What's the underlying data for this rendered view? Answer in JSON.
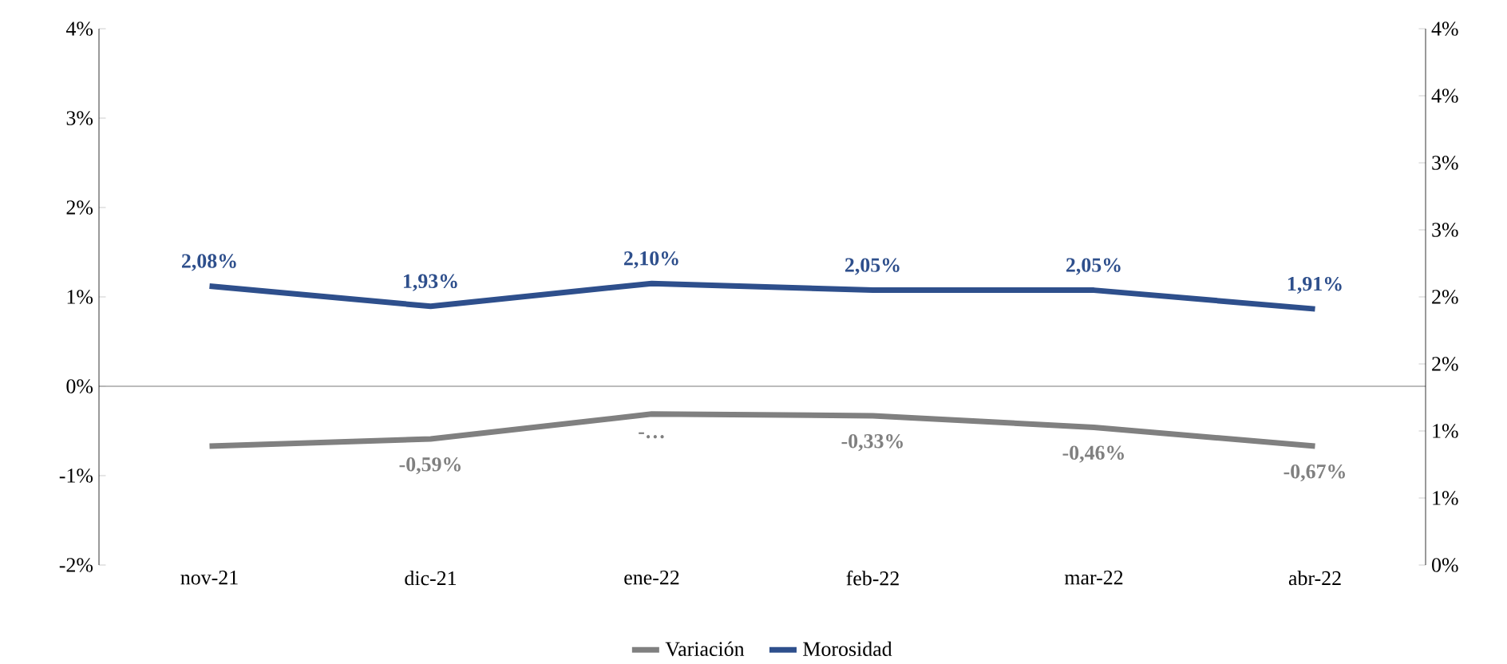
{
  "chart_data": {
    "type": "line",
    "categories": [
      "nov-21",
      "dic-21",
      "ene-22",
      "feb-22",
      "mar-22",
      "abr-22"
    ],
    "series": [
      {
        "name": "Variación",
        "color": "#808080",
        "values": [
          -0.67,
          -0.59,
          -0.31,
          -0.33,
          -0.46,
          -0.67
        ],
        "value_labels": [
          null,
          "-0,59%",
          "-…",
          "-0,33%",
          "-0,46%",
          "-0,67%"
        ]
      },
      {
        "name": "Morosidad",
        "color": "#2e4f8c",
        "axis": "y2",
        "values": [
          2.08,
          1.93,
          2.1,
          2.05,
          2.05,
          1.91
        ],
        "value_labels": [
          "2,08%",
          "1,93%",
          "2,10%",
          "2,05%",
          "2,05%",
          "1,91%"
        ]
      }
    ],
    "ylim": [
      -2,
      4
    ],
    "yticks": [
      {
        "value": -2,
        "label": "-2%"
      },
      {
        "value": -1,
        "label": "-1%"
      },
      {
        "value": 0,
        "label": "0%"
      },
      {
        "value": 1,
        "label": "1%"
      },
      {
        "value": 2,
        "label": "2%"
      },
      {
        "value": 3,
        "label": "3%"
      },
      {
        "value": 4,
        "label": "4%"
      }
    ],
    "y2lim": [
      0,
      4
    ],
    "y2ticks": [
      {
        "value": 0,
        "label": "0%"
      },
      {
        "value": 0.5,
        "label": "1%"
      },
      {
        "value": 1,
        "label": "1%"
      },
      {
        "value": 1.5,
        "label": "2%"
      },
      {
        "value": 2,
        "label": "2%"
      },
      {
        "value": 2.5,
        "label": "3%"
      },
      {
        "value": 3,
        "label": "3%"
      },
      {
        "value": 3.5,
        "label": "4%"
      },
      {
        "value": 4,
        "label": "4%"
      }
    ],
    "legend": "bottom",
    "marker": "none",
    "line_style": "solid"
  }
}
